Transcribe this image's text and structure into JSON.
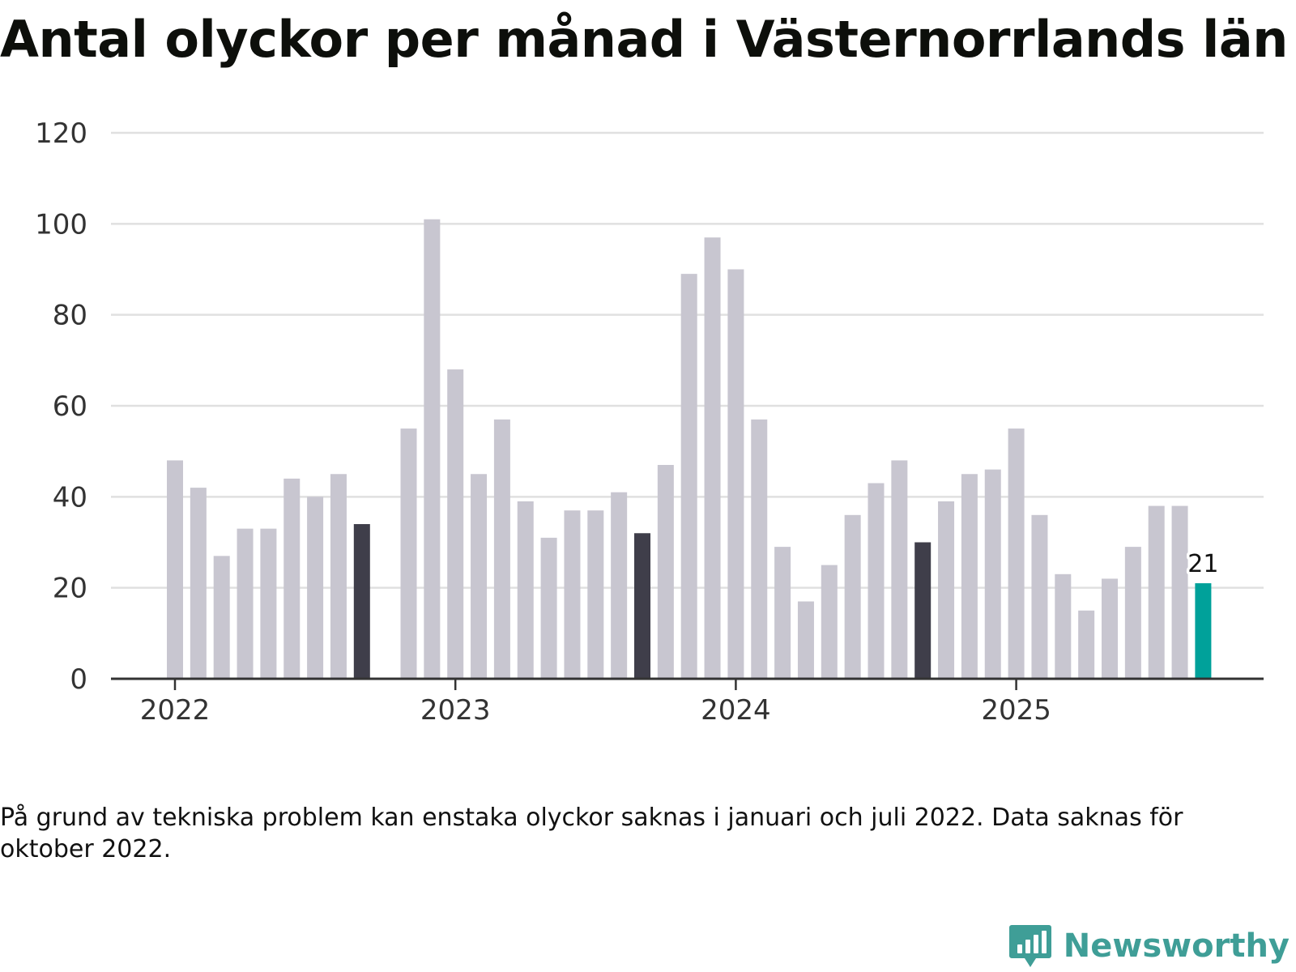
{
  "title": "Antal olyckor per månad i Västernorrlands län",
  "footnote": "På grund av tekniska problem kan enstaka olyckor saknas i januari och juli 2022. Data saknas för oktober 2022.",
  "brand": {
    "name": "Newsworthy"
  },
  "colors": {
    "bar_default": "#c8c6d0",
    "bar_highlight": "#3f3e4a",
    "bar_latest": "#00a19a",
    "gridline": "#e0e0e0",
    "axis": "#333333",
    "brand": "#3f9e97"
  },
  "chart_data": {
    "type": "bar",
    "title": "Antal olyckor per månad i Västernorrlands län",
    "xlabel": "",
    "ylabel": "",
    "ylim": [
      0,
      120
    ],
    "yticks": [
      0,
      20,
      40,
      60,
      80,
      100,
      120
    ],
    "grid": true,
    "legend": "none",
    "x_tick_labels": [
      {
        "label": "2022",
        "month": "2022-01"
      },
      {
        "label": "2023",
        "month": "2023-01"
      },
      {
        "label": "2024",
        "month": "2024-01"
      },
      {
        "label": "2025",
        "month": "2025-01"
      }
    ],
    "data_labels": [
      {
        "month": "2025-09",
        "text": "21"
      }
    ],
    "series": [
      {
        "name": "Antal olyckor",
        "points": [
          {
            "month": "2022-01",
            "value": 48
          },
          {
            "month": "2022-02",
            "value": 42
          },
          {
            "month": "2022-03",
            "value": 27
          },
          {
            "month": "2022-04",
            "value": 33
          },
          {
            "month": "2022-05",
            "value": 33
          },
          {
            "month": "2022-06",
            "value": 44
          },
          {
            "month": "2022-07",
            "value": 40
          },
          {
            "month": "2022-08",
            "value": 45
          },
          {
            "month": "2022-09",
            "value": 34,
            "highlight": "september"
          },
          {
            "month": "2022-10",
            "value": null
          },
          {
            "month": "2022-11",
            "value": 55
          },
          {
            "month": "2022-12",
            "value": 101
          },
          {
            "month": "2023-01",
            "value": 68
          },
          {
            "month": "2023-02",
            "value": 45
          },
          {
            "month": "2023-03",
            "value": 57
          },
          {
            "month": "2023-04",
            "value": 39
          },
          {
            "month": "2023-05",
            "value": 31
          },
          {
            "month": "2023-06",
            "value": 37
          },
          {
            "month": "2023-07",
            "value": 37
          },
          {
            "month": "2023-08",
            "value": 41
          },
          {
            "month": "2023-09",
            "value": 32,
            "highlight": "september"
          },
          {
            "month": "2023-10",
            "value": 47
          },
          {
            "month": "2023-11",
            "value": 89
          },
          {
            "month": "2023-12",
            "value": 97
          },
          {
            "month": "2024-01",
            "value": 90
          },
          {
            "month": "2024-02",
            "value": 57
          },
          {
            "month": "2024-03",
            "value": 29
          },
          {
            "month": "2024-04",
            "value": 17
          },
          {
            "month": "2024-05",
            "value": 25
          },
          {
            "month": "2024-06",
            "value": 36
          },
          {
            "month": "2024-07",
            "value": 43
          },
          {
            "month": "2024-08",
            "value": 48
          },
          {
            "month": "2024-09",
            "value": 30,
            "highlight": "september"
          },
          {
            "month": "2024-10",
            "value": 39
          },
          {
            "month": "2024-11",
            "value": 45
          },
          {
            "month": "2024-12",
            "value": 46
          },
          {
            "month": "2025-01",
            "value": 55
          },
          {
            "month": "2025-02",
            "value": 36
          },
          {
            "month": "2025-03",
            "value": 23
          },
          {
            "month": "2025-04",
            "value": 15
          },
          {
            "month": "2025-05",
            "value": 22
          },
          {
            "month": "2025-06",
            "value": 29
          },
          {
            "month": "2025-07",
            "value": 38
          },
          {
            "month": "2025-08",
            "value": 38
          },
          {
            "month": "2025-09",
            "value": 21,
            "highlight": "latest"
          }
        ]
      }
    ]
  }
}
